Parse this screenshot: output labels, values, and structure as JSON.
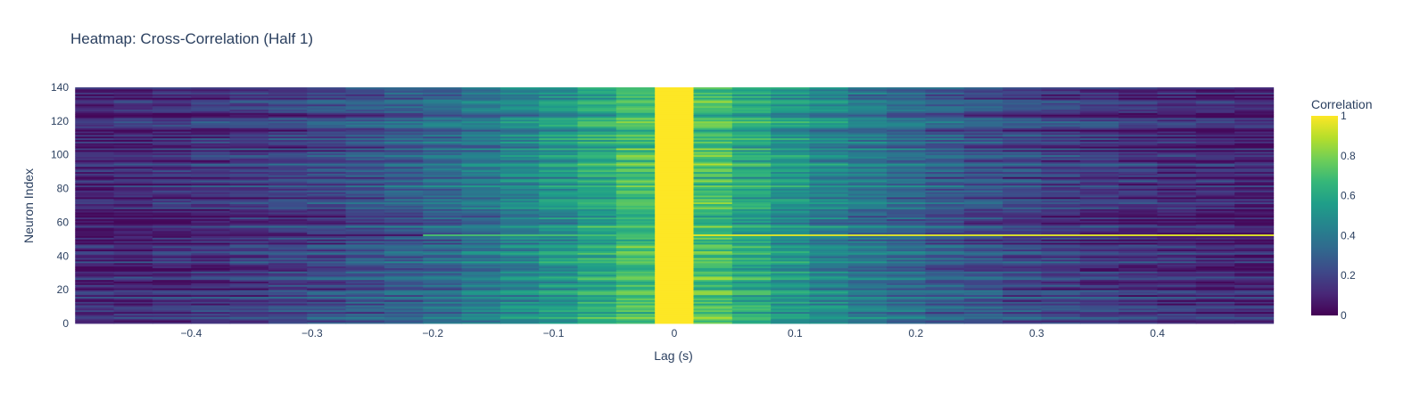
{
  "chart_data": {
    "type": "heatmap",
    "title": "Heatmap: Cross-Correlation (Half 1)",
    "xlabel": "Lag (s)",
    "ylabel": "Neuron Index",
    "x_range": [
      -0.5,
      0.5
    ],
    "y_range": [
      0,
      140
    ],
    "x_lag_bins": [
      -0.48,
      -0.448,
      -0.416,
      -0.384,
      -0.352,
      -0.32,
      -0.288,
      -0.256,
      -0.224,
      -0.192,
      -0.16,
      -0.128,
      -0.096,
      -0.064,
      -0.032,
      0,
      0.032,
      0.064,
      0.096,
      0.128,
      0.16,
      0.192,
      0.224,
      0.256,
      0.288,
      0.32,
      0.352,
      0.384,
      0.416,
      0.448,
      0.48
    ],
    "n_neurons": 140,
    "x_ticks": [
      {
        "value": -0.4,
        "label": "−0.4"
      },
      {
        "value": -0.3,
        "label": "−0.3"
      },
      {
        "value": -0.2,
        "label": "−0.2"
      },
      {
        "value": -0.1,
        "label": "−0.1"
      },
      {
        "value": 0,
        "label": "0"
      },
      {
        "value": 0.1,
        "label": "0.1"
      },
      {
        "value": 0.2,
        "label": "0.2"
      },
      {
        "value": 0.3,
        "label": "0.3"
      },
      {
        "value": 0.4,
        "label": "0.4"
      }
    ],
    "y_ticks": [
      {
        "value": 0,
        "label": "0"
      },
      {
        "value": 20,
        "label": "20"
      },
      {
        "value": 40,
        "label": "40"
      },
      {
        "value": 60,
        "label": "60"
      },
      {
        "value": 80,
        "label": "80"
      },
      {
        "value": 100,
        "label": "100"
      },
      {
        "value": 120,
        "label": "120"
      },
      {
        "value": 140,
        "label": "140"
      }
    ],
    "colorbar": {
      "title": "Correlation",
      "range": [
        0,
        1
      ],
      "colorscale": "Viridis",
      "ticks": [
        {
          "value": 0,
          "label": "0"
        },
        {
          "value": 0.2,
          "label": "0.2"
        },
        {
          "value": 0.4,
          "label": "0.4"
        },
        {
          "value": 0.6,
          "label": "0.6"
        },
        {
          "value": 0.8,
          "label": "0.8"
        },
        {
          "value": 1,
          "label": "1"
        }
      ]
    },
    "z_description_summary": {
      "peak_at_lag_0": 1.0,
      "typical_near_lag_0": 0.8,
      "typical_at_edges": 0.1
    },
    "highlight_rows": [
      {
        "neuron": 52,
        "profile": "high_flat",
        "value": 0.95
      },
      {
        "neuron": 15,
        "profile": "wide",
        "value": 0.7
      }
    ]
  }
}
